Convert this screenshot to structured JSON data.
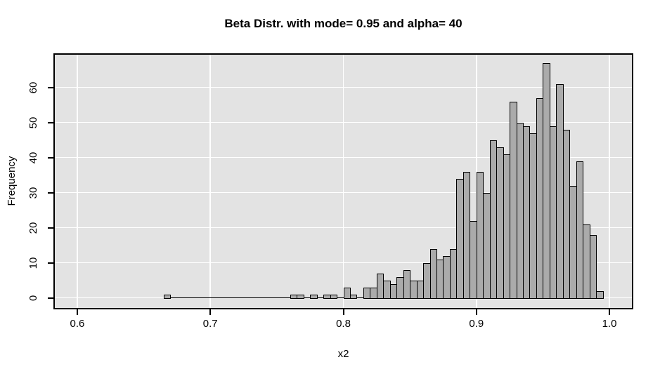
{
  "chart_data": {
    "type": "histogram",
    "title": "Beta Distr. with mode= 0.95 and alpha= 40",
    "xlabel": "x2",
    "ylabel": "Frequency",
    "x_tick_values": [
      0.6,
      0.7,
      0.8,
      0.9,
      1.0
    ],
    "x_tick_labels": [
      "0.6",
      "0.7",
      "0.8",
      "0.9",
      "1.0"
    ],
    "y_tick_values": [
      0,
      10,
      20,
      30,
      40,
      50,
      60
    ],
    "y_tick_labels": [
      "0",
      "10",
      "20",
      "30",
      "40",
      "50",
      "60"
    ],
    "xlim": [
      0.5831,
      1.0169
    ],
    "ylim": [
      -2.9,
      69.3
    ],
    "grid": true,
    "bin_width": 0.005,
    "first_bin_start": 0.665,
    "counts": [
      1,
      0,
      0,
      0,
      0,
      0,
      0,
      0,
      0,
      0,
      0,
      0,
      0,
      0,
      0,
      0,
      0,
      0,
      0,
      1,
      1,
      0,
      1,
      0,
      1,
      1,
      0,
      3,
      1,
      0,
      3,
      3,
      7,
      5,
      4,
      6,
      8,
      5,
      5,
      10,
      14,
      11,
      12,
      14,
      34,
      36,
      22,
      36,
      30,
      45,
      43,
      41,
      56,
      50,
      49,
      47,
      57,
      67,
      49,
      61,
      48,
      32,
      39,
      21,
      18,
      2
    ],
    "total_observations": 1000,
    "colors": {
      "panel_background": "#e3e3e3",
      "bar_fill": "#ababab",
      "bar_border": "#000000",
      "gridline": "#ffffff",
      "axis": "#000000",
      "text": "#000000",
      "figure_background": "#ffffff"
    }
  }
}
